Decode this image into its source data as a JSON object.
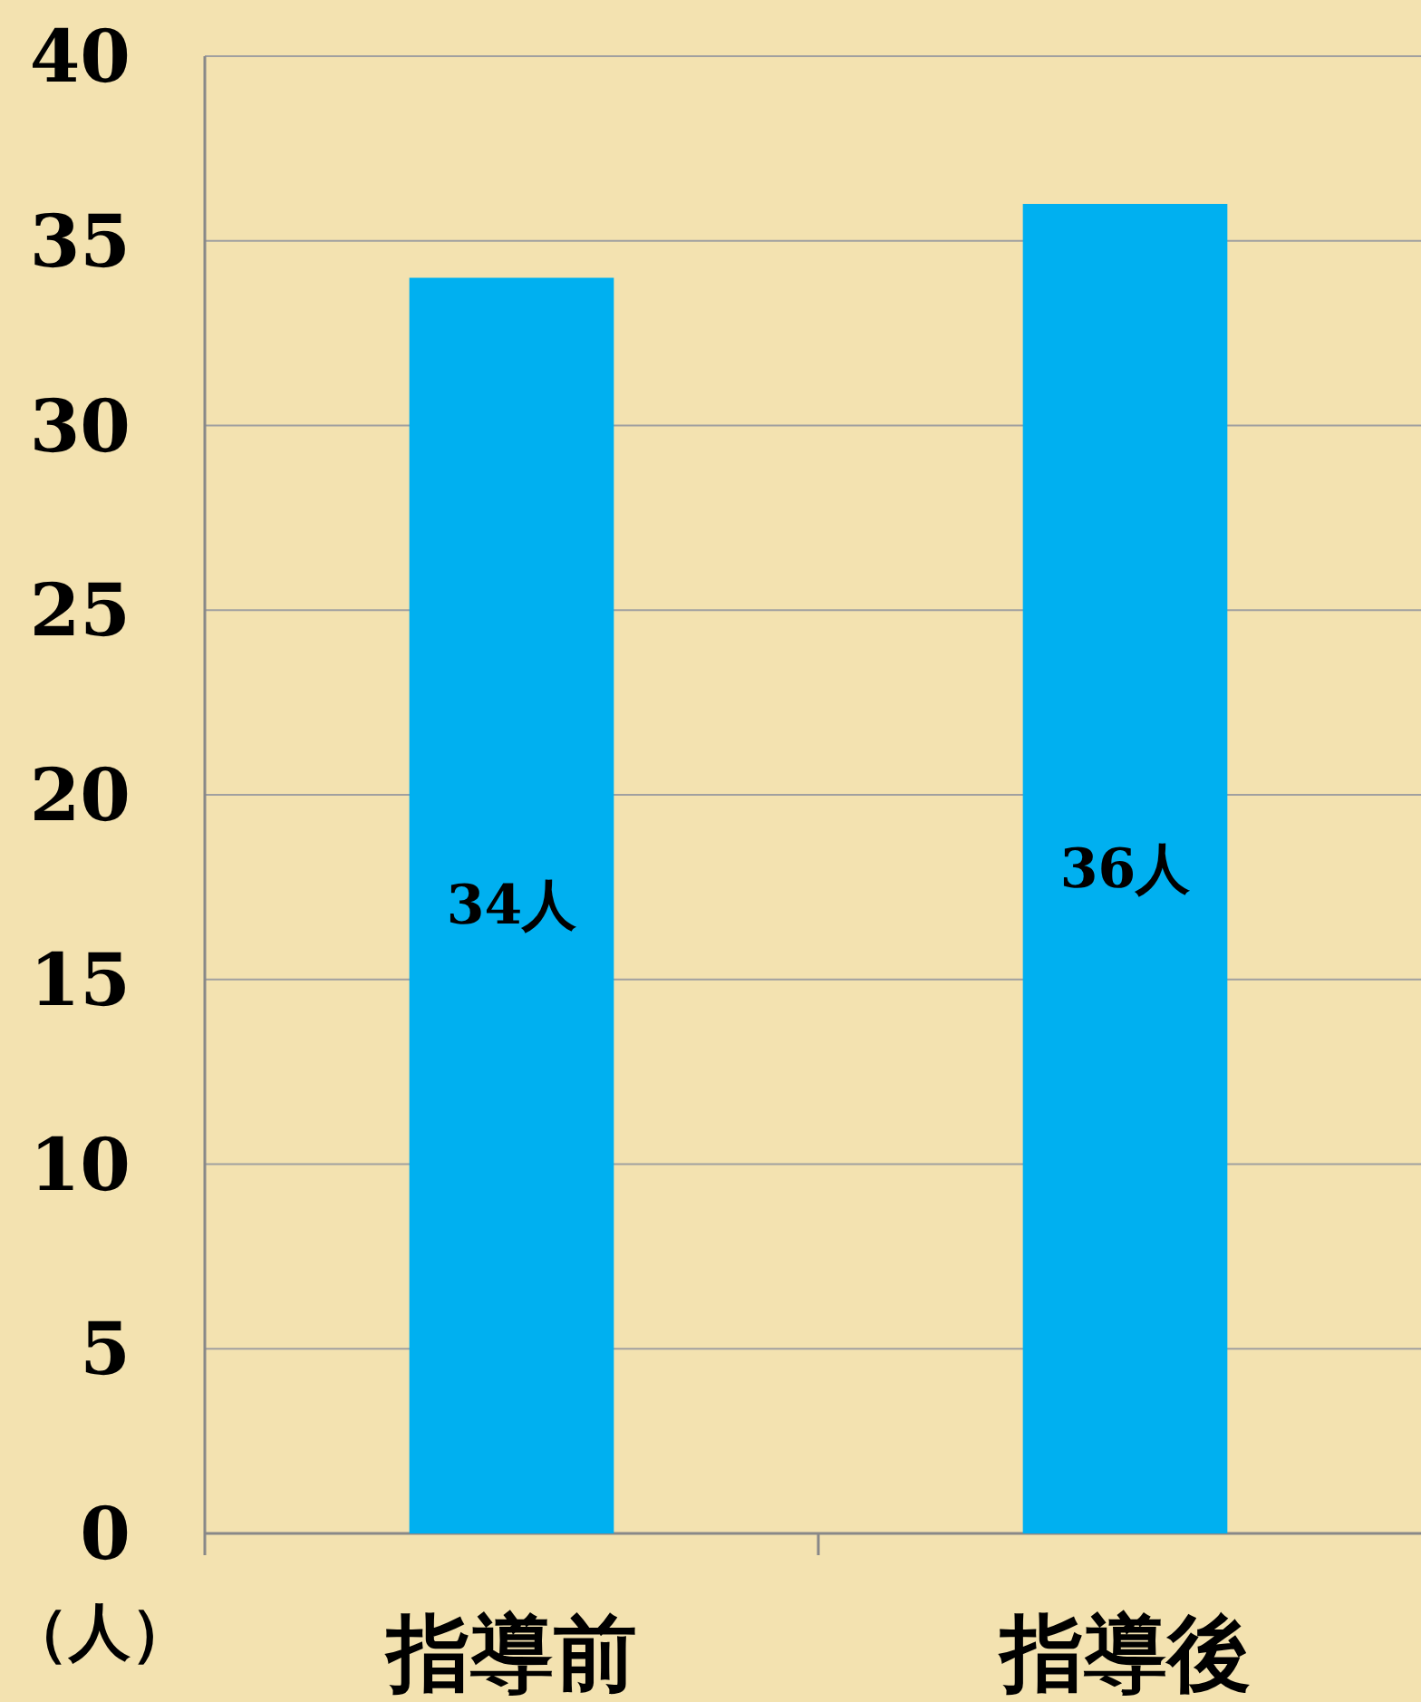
{
  "chart_data": {
    "type": "bar",
    "ylabel": "（人）",
    "categories": [
      "指導前",
      "指導後"
    ],
    "values": [
      34,
      36
    ],
    "color": "#00b0f0",
    "value_labels": [
      "34人",
      "36人"
    ],
    "ylim": [
      0,
      40
    ],
    "yticks": [
      0,
      5,
      10,
      15,
      20,
      25,
      30,
      35,
      40
    ],
    "grid": "y"
  }
}
